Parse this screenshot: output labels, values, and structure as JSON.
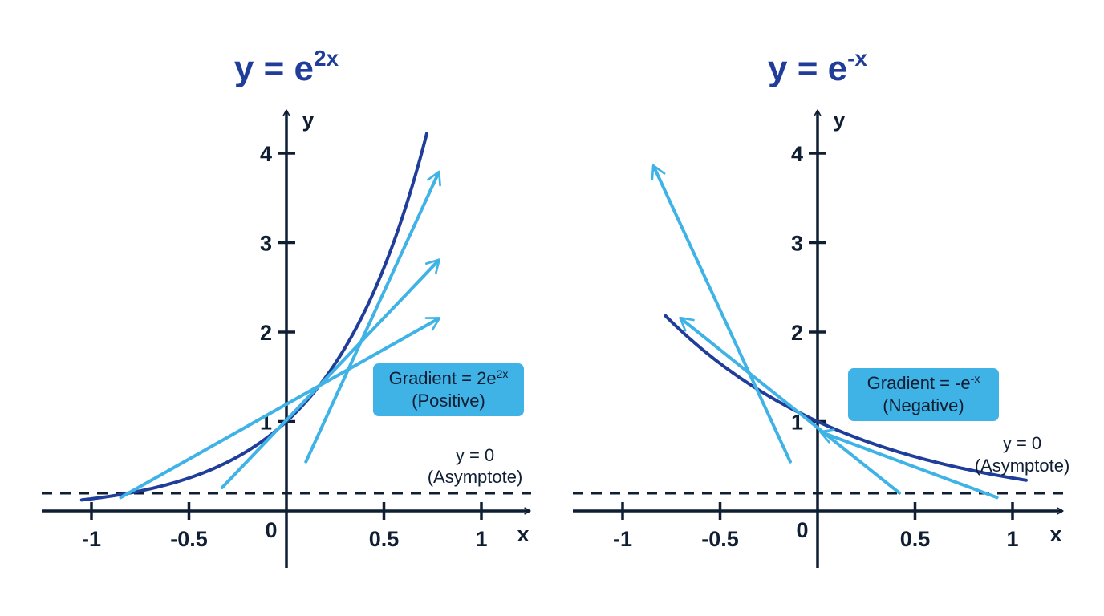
{
  "colors": {
    "curve": "#1f3d99",
    "tangent": "#3fb2e6",
    "axis": "#0f1e33",
    "title": "#1f3d99",
    "box_fill": "#3fb2e6",
    "box_text": "#0f1e33"
  },
  "panels": [
    {
      "id": "left",
      "title": {
        "base": "y = e",
        "sup": "2x"
      },
      "chart_data": {
        "type": "line",
        "function": "e^(2x)",
        "xlim": [
          -1.2,
          1.2
        ],
        "ylim": [
          -0.6,
          4.4
        ],
        "x_ticks": [
          -1,
          -0.5,
          0.5,
          1
        ],
        "x_tick_labels": [
          "-1",
          "-0.5",
          "0.5",
          "1"
        ],
        "y_ticks": [
          1,
          2,
          3,
          4
        ],
        "y_tick_labels": [
          "1",
          "2",
          "3",
          "4"
        ],
        "origin_label": "0",
        "xlabel": "x",
        "ylabel": "y",
        "curve_x_range": [
          -1.05,
          0.72
        ],
        "asymptote_y": 0.2,
        "tangents": [
          {
            "from": [
              -0.85,
              0.15
            ],
            "to": [
              0.78,
              2.15
            ]
          },
          {
            "from": [
              -0.33,
              0.26
            ],
            "to": [
              0.78,
              2.8
            ]
          },
          {
            "from": [
              0.1,
              0.55
            ],
            "to": [
              0.78,
              3.78
            ]
          }
        ]
      },
      "gradient_box": {
        "line1_base": "Gradient = 2e",
        "line1_sup": "2x",
        "line2": "(Positive)"
      },
      "asymptote_label": {
        "line1": "y = 0",
        "line2": "(Asymptote)"
      }
    },
    {
      "id": "right",
      "title": {
        "base": "y = e",
        "sup": "-x"
      },
      "chart_data": {
        "type": "line",
        "function": "e^(-x)",
        "xlim": [
          -1.2,
          1.2
        ],
        "ylim": [
          -0.6,
          4.4
        ],
        "x_ticks": [
          -1,
          -0.5,
          0.5,
          1
        ],
        "x_tick_labels": [
          "-1",
          "-0.5",
          "0.5",
          "1"
        ],
        "y_ticks": [
          1,
          2,
          3,
          4
        ],
        "y_tick_labels": [
          "1",
          "2",
          "3",
          "4"
        ],
        "origin_label": "0",
        "xlabel": "x",
        "ylabel": "y",
        "curve_x_range": [
          -0.78,
          1.07
        ],
        "asymptote_y": 0.2,
        "tangents": [
          {
            "from": [
              -0.14,
              0.55
            ],
            "to": [
              -0.84,
              3.85
            ]
          },
          {
            "from": [
              0.42,
              0.2
            ],
            "to": [
              -0.7,
              2.15
            ]
          },
          {
            "from": [
              0.92,
              0.15
            ],
            "to": [
              0.02,
              0.88
            ]
          }
        ]
      },
      "gradient_box": {
        "line1_base": "Gradient = -e",
        "line1_sup": "-x",
        "line2": "(Negative)"
      },
      "asymptote_label": {
        "line1": "y = 0",
        "line2": "(Asymptote)"
      }
    }
  ]
}
